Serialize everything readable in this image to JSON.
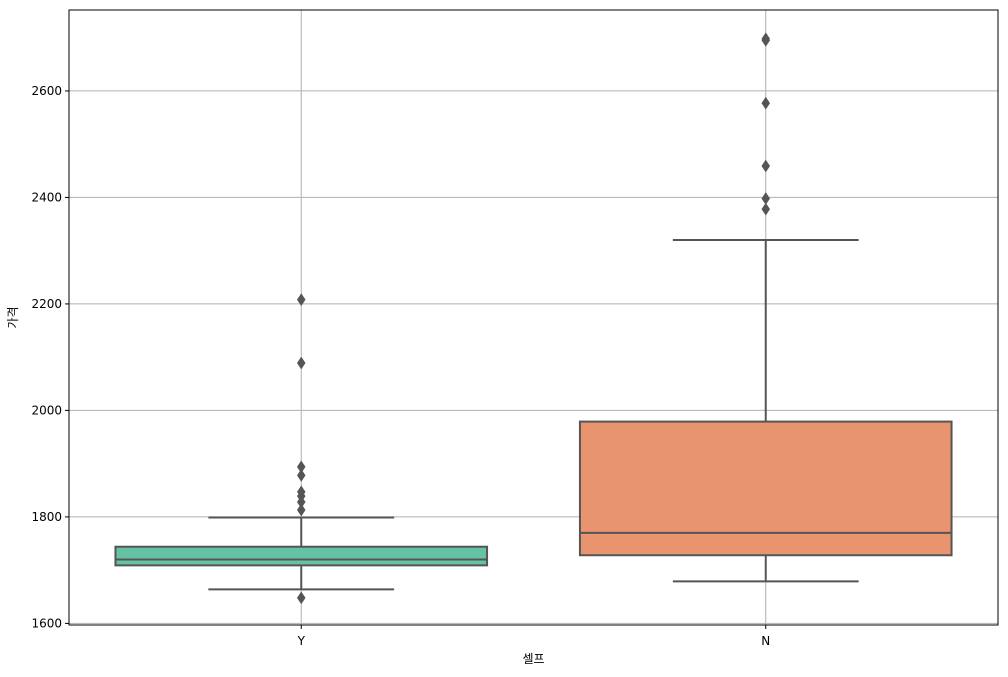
{
  "chart_data": {
    "type": "box",
    "categories": [
      "Y",
      "N"
    ],
    "xlabel": "셀프",
    "ylabel": "가격",
    "ylim": [
      1597,
      2752
    ],
    "yticks": [
      1600,
      1800,
      2000,
      2200,
      2400,
      2600
    ],
    "grid": true,
    "legend": "none",
    "boxes": [
      {
        "category": "Y",
        "color": "#66c2a5",
        "whisker_low": 1664,
        "q1": 1709,
        "median": 1720,
        "q3": 1744,
        "whisker_high": 1799,
        "outliers": [
          1648,
          1813,
          1828,
          1839,
          1847,
          1878,
          1894,
          2089,
          2208
        ]
      },
      {
        "category": "N",
        "color": "#e8956f",
        "whisker_low": 1679,
        "q1": 1728,
        "median": 1770,
        "q3": 1979,
        "whisker_high": 2320,
        "outliers": [
          2378,
          2398,
          2459,
          2577,
          2695,
          2698
        ]
      }
    ]
  }
}
